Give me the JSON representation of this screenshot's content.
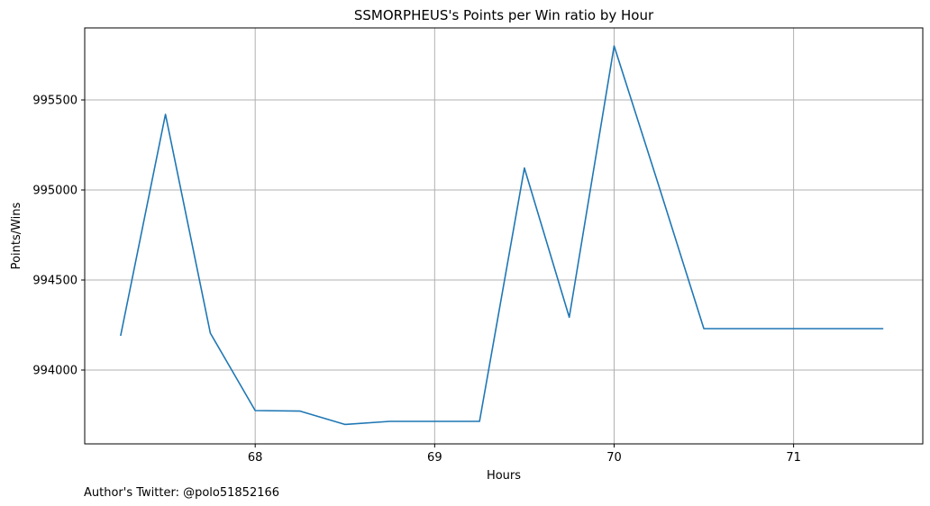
{
  "chart_data": {
    "type": "line",
    "title": "SSMORPHEUS's Points per Win ratio by Hour",
    "xlabel": "Hours",
    "ylabel": "Points/Wins",
    "xlim": [
      67.05,
      71.72
    ],
    "ylim": [
      993590,
      995900
    ],
    "xticks": [
      68,
      69,
      70,
      71
    ],
    "yticks": [
      994000,
      994500,
      995000,
      995500
    ],
    "grid": true,
    "line_color": "#1f77b4",
    "series": [
      {
        "x": [
          67.25,
          67.5,
          67.75,
          68.0,
          68.25,
          68.5,
          68.75,
          69.0,
          69.25,
          69.5,
          69.75,
          70.0,
          70.25,
          70.5,
          70.75,
          71.0,
          71.25,
          71.5
        ],
        "values": [
          994190,
          995420,
          994205,
          993775,
          993772,
          993698,
          993715,
          993715,
          993715,
          995122,
          994293,
          995800,
          995020,
          994230,
          994230,
          994230,
          994230,
          994230
        ]
      }
    ]
  },
  "credit": "Author's Twitter: @polo51852166"
}
